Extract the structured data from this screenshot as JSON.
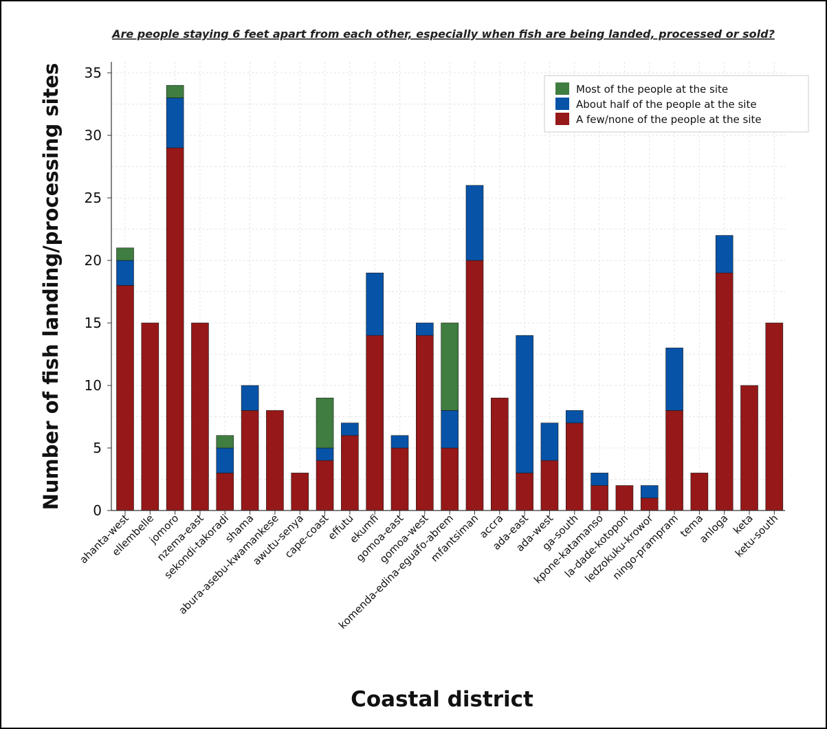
{
  "chart_data": {
    "type": "bar",
    "stacked": true,
    "title": "Are people staying 6 feet apart from each other, especially when fish are being landed, processed or sold?",
    "xlabel": "Coastal district",
    "ylabel": "Number of fish landing/processing sites",
    "ylim": [
      0,
      35
    ],
    "yticks": [
      0,
      5,
      10,
      15,
      20,
      25,
      30,
      35
    ],
    "grid": true,
    "legend_position": "top-right",
    "categories": [
      "ahanta-west",
      "ellembelle",
      "jomoro",
      "nzema-east",
      "sekondi-takoradi",
      "shama",
      "abura-asebu-kwamankese",
      "awutu-senya",
      "cape-coast",
      "effutu",
      "ekumfi",
      "gomoa-east",
      "gomoa-west",
      "komenda-edina-eguafo-abrem",
      "mfantsiman",
      "accra",
      "ada-east",
      "ada-west",
      "ga-south",
      "kpone-katamanso",
      "la-dade-kotopon",
      "ledzokuku-krowor",
      "ningo-prampram",
      "tema",
      "anloga",
      "keta",
      "ketu-south"
    ],
    "series": [
      {
        "name": "A few/none of the people at the site",
        "color": "#961818",
        "values": [
          18,
          15,
          29,
          15,
          3,
          8,
          8,
          3,
          4,
          6,
          14,
          5,
          14,
          5,
          20,
          9,
          3,
          4,
          7,
          2,
          2,
          1,
          8,
          3,
          19,
          10,
          15
        ]
      },
      {
        "name": "About half of the people at the site",
        "color": "#0753a8",
        "values": [
          2,
          0,
          4,
          0,
          2,
          2,
          0,
          0,
          1,
          1,
          5,
          1,
          1,
          3,
          6,
          0,
          11,
          3,
          1,
          1,
          0,
          1,
          5,
          0,
          3,
          0,
          0
        ]
      },
      {
        "name": "Most of the people at the site",
        "color": "#3f7d40",
        "values": [
          1,
          0,
          1,
          0,
          1,
          0,
          0,
          0,
          4,
          0,
          0,
          0,
          0,
          7,
          0,
          0,
          0,
          0,
          0,
          0,
          0,
          0,
          0,
          0,
          0,
          0,
          0
        ]
      }
    ],
    "legend_order": [
      "Most of the people at the site",
      "About half of the people at the site",
      "A few/none of the people at the site"
    ]
  }
}
